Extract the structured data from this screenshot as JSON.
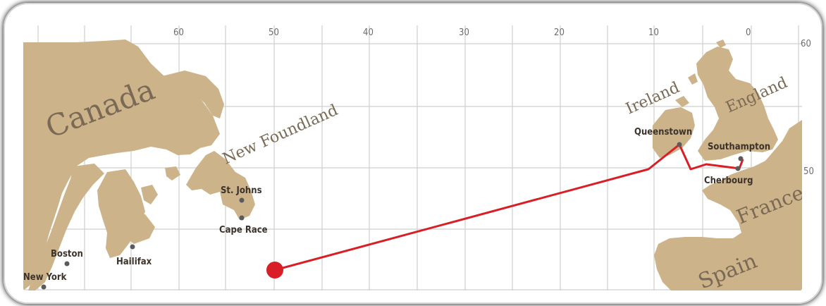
{
  "longitude_labels": [
    "60",
    "50",
    "40",
    "30",
    "20",
    "10",
    "0"
  ],
  "latitude_labels": [
    "60",
    "50"
  ],
  "regions": {
    "canada": "Canada",
    "new_foundland": "New Foundland",
    "ireland": "Ireland",
    "england": "England",
    "france": "France",
    "spain": "Spain"
  },
  "places": {
    "st_johns": "St. Johns",
    "cape_race": "Cape Race",
    "boston": "Boston",
    "hailifax": "Hailifax",
    "new_york": "New York",
    "queenstown": "Queenstown",
    "southampton": "Southampton",
    "cherbourg": "Cherbourg"
  },
  "colors": {
    "land": "#cdb38a",
    "route": "#d81f26",
    "grid": "#cfcfcf",
    "frame_shadow": "#bfbfbf"
  }
}
